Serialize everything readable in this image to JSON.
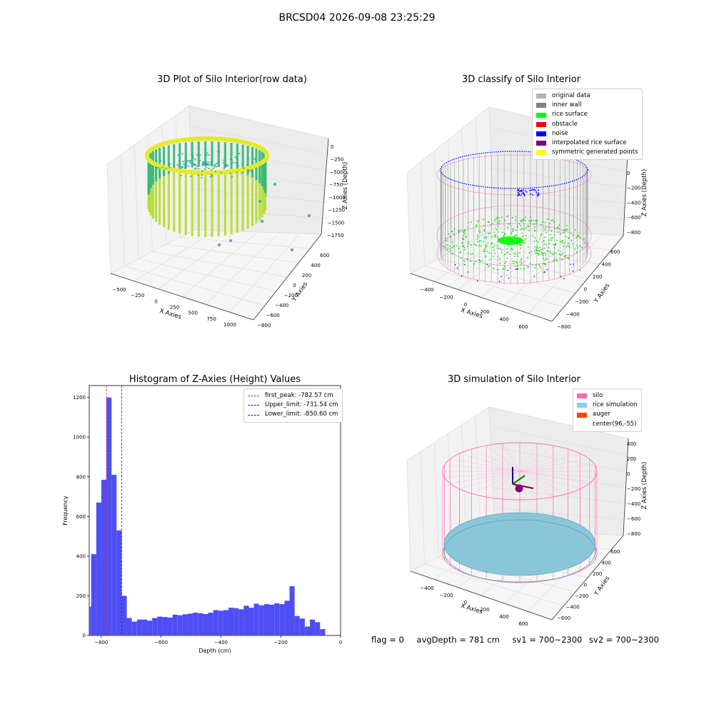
{
  "suptitle": "BRCSD04 2026-09-08 23:25:29",
  "footer": {
    "flag": "flag = 0",
    "avg_depth": "avgDepth = 781 cm",
    "sv1": "sv1 = 700~2300",
    "sv2": "sv2 = 700~2300"
  },
  "colors": {
    "hist_bar": "#4a4af5",
    "first_peak": "#e03030",
    "limit_lines": "#1a1ad0",
    "silo": "#ff69b4",
    "rice_simulation": "#87ceeb",
    "auger": "#ff4500",
    "rice_surface": "#00ff00",
    "noise": "#0000ff",
    "inner_wall": "#808080"
  },
  "chart_data": [
    {
      "type": "scatter",
      "projection": "3d",
      "title": "3D Plot of Silo Interior(row data)",
      "xlabel": "X Axies",
      "ylabel": "Y Axies",
      "zlabel": "Z Axies (Depth)",
      "xticks": [
        "−500",
        "−250",
        "0",
        "250",
        "500",
        "750",
        "1000"
      ],
      "yticks": [
        "−800",
        "−600",
        "−400",
        "−200",
        "0",
        "200",
        "400",
        "600"
      ],
      "zticks": [
        "0",
        "−250",
        "−500",
        "−750",
        "−1000",
        "−1250",
        "−1500",
        "−1750"
      ],
      "colormap": "viridis"
    },
    {
      "type": "scatter",
      "projection": "3d",
      "title": "3D classify of Silo Interior",
      "xlabel": "X Axies",
      "ylabel": "Y Axies",
      "zlabel": "Z Axies (Depth)",
      "xticks": [
        "−400",
        "−200",
        "0",
        "200",
        "400",
        "600"
      ],
      "yticks": [
        "−600",
        "−400",
        "−200",
        "0",
        "200",
        "400",
        "600"
      ],
      "zticks": [
        "200",
        "0",
        "−200",
        "−400",
        "−600",
        "−800"
      ],
      "legend_position": "top-right",
      "legend": [
        {
          "label": "original data",
          "color": "#b3b3b3"
        },
        {
          "label": "inner wall",
          "color": "#808080"
        },
        {
          "label": "rice surface",
          "color": "#00ff00"
        },
        {
          "label": "obstacle",
          "color": "#ff0000"
        },
        {
          "label": "noise",
          "color": "#0000ff"
        },
        {
          "label": "interpolated rice surface",
          "color": "#800080"
        },
        {
          "label": "symmetric generated points",
          "color": "#ffff00"
        }
      ]
    },
    {
      "type": "bar",
      "title": "Histogram of Z-Axies (Height) Values",
      "xlabel": "Depth (cm)",
      "ylabel": "Frequency",
      "xlim": [
        -840,
        0
      ],
      "ylim": [
        0,
        1260
      ],
      "xticks": [
        -800,
        -600,
        -400,
        -200,
        0
      ],
      "yticks": [
        0,
        200,
        400,
        600,
        800,
        1000,
        1200
      ],
      "bin_width": 17.0,
      "bin_start": -850.6,
      "values": [
        145,
        410,
        670,
        785,
        1200,
        810,
        530,
        200,
        88,
        70,
        80,
        80,
        75,
        88,
        95,
        93,
        90,
        105,
        102,
        107,
        110,
        115,
        112,
        108,
        115,
        128,
        125,
        128,
        140,
        138,
        132,
        150,
        140,
        160,
        152,
        158,
        155,
        162,
        158,
        175,
        248,
        98,
        85,
        45,
        80,
        67,
        32
      ],
      "vlines": [
        {
          "label": "first_peak: -782.57 cm",
          "x": -782.57,
          "color": "#e03030"
        },
        {
          "label": "Upper_limit: -731.54 cm",
          "x": -731.54,
          "color": "#1a1ad0"
        },
        {
          "label": "Lower_limit: -850.60 cm",
          "x": -850.6,
          "color": "#1a1ad0"
        }
      ],
      "legend_position": "top-right",
      "grid": false
    },
    {
      "type": "scatter",
      "projection": "3d",
      "title": "3D simulation of Silo Interior",
      "xlabel": "X Axies",
      "ylabel": "Y Axies",
      "zlabel": "Z Axies (Depth)",
      "xticks": [
        "−400",
        "−200",
        "0",
        "200",
        "400",
        "600"
      ],
      "yticks": [
        "−600",
        "−400",
        "−200",
        "0",
        "200",
        "400",
        "600"
      ],
      "zticks": [
        "400",
        "200",
        "0",
        "−200",
        "−400",
        "−600",
        "−800"
      ],
      "legend_position": "top-right",
      "legend": [
        {
          "label": "silo",
          "color": "#ff69b4"
        },
        {
          "label": "rice simulation",
          "color": "#87ceeb"
        },
        {
          "label": "auger",
          "color": "#ff4500"
        },
        {
          "label": "center(96,-55)",
          "color": "#ffffff"
        }
      ]
    }
  ]
}
